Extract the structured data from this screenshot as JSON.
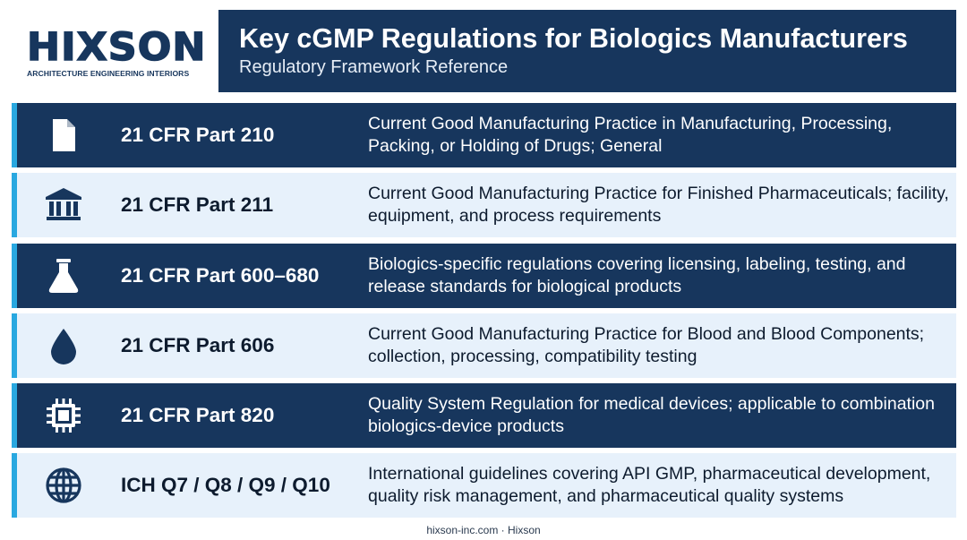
{
  "logo": {
    "wordmark": "HIXSON",
    "tagline": "ARCHITECTURE ENGINEERING INTERIORS"
  },
  "header": {
    "title": "Key cGMP Regulations for Biologics Manufacturers",
    "subtitle": "Regulatory Framework Reference"
  },
  "colors": {
    "navy": "#17365d",
    "light_row": "#e7f1fb",
    "accent": "#29a8e0"
  },
  "regulations": [
    {
      "icon": "document-icon",
      "code": "21 CFR Part 210",
      "description": "Current Good Manufacturing Practice in Manufacturing, Processing, Packing, or Holding of Drugs; General"
    },
    {
      "icon": "institution-icon",
      "code": "21 CFR Part 211",
      "description": "Current Good Manufacturing Practice for Finished Pharmaceuticals; facility, equipment, and process requirements"
    },
    {
      "icon": "flask-icon",
      "code": "21 CFR Part 600–680",
      "description": "Biologics-specific regulations covering licensing, labeling, testing, and release standards for biological products"
    },
    {
      "icon": "drop-icon",
      "code": "21 CFR Part 606",
      "description": "Current Good Manufacturing Practice for Blood and Blood Components; collection, processing, compatibility testing"
    },
    {
      "icon": "chip-icon",
      "code": "21 CFR Part 820",
      "description": "Quality System Regulation for medical devices; applicable to combination biologics-device products"
    },
    {
      "icon": "globe-icon",
      "code": "ICH Q7 / Q8 / Q9 / Q10",
      "description": "International guidelines covering API GMP, pharmaceutical development, quality risk management, and pharmaceutical quality systems"
    }
  ],
  "footer": {
    "text": "hixson-inc.com · Hixson"
  }
}
